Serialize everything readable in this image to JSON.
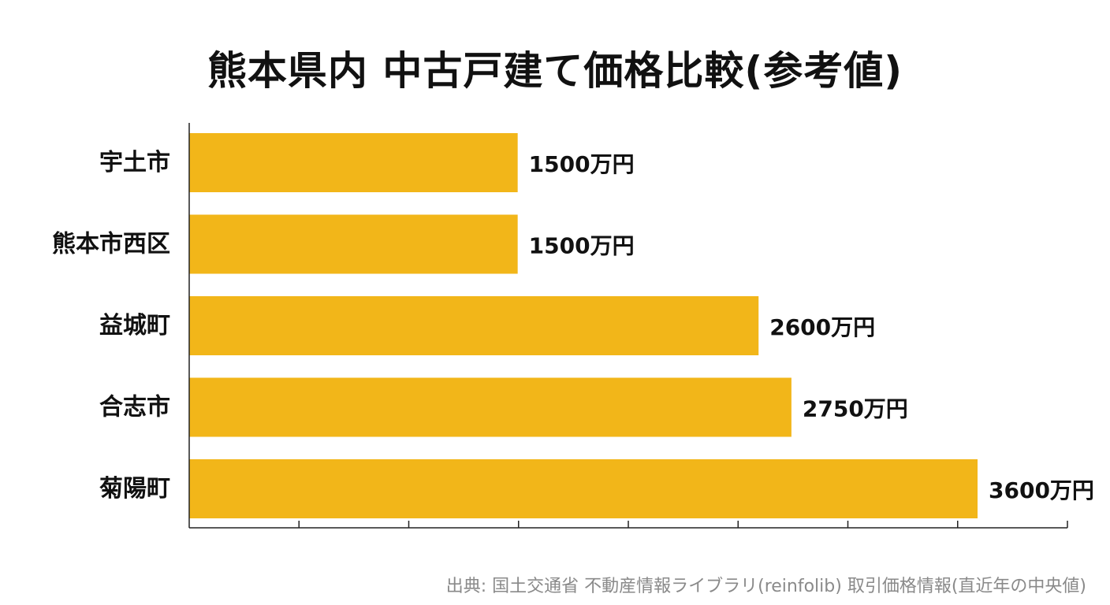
{
  "title": "熊本県内 中古戸建て価格比較(参考値)",
  "source": "出典: 国土交通省 不動産情報ライブラリ(reinfolib) 取引価格情報(直近年の中央値)",
  "unit": "万円",
  "chart_data": {
    "type": "bar",
    "orientation": "horizontal",
    "categories": [
      "宇土市",
      "熊本市西区",
      "益城町",
      "合志市",
      "菊陽町"
    ],
    "values": [
      1500,
      1500,
      2600,
      2750,
      3600
    ],
    "value_labels": [
      "1500万円",
      "1500万円",
      "2600万円",
      "2750万円",
      "3600万円"
    ],
    "bar_color": "#F2B619",
    "xlim": [
      0,
      4000
    ],
    "grid": false,
    "legend": "none"
  }
}
